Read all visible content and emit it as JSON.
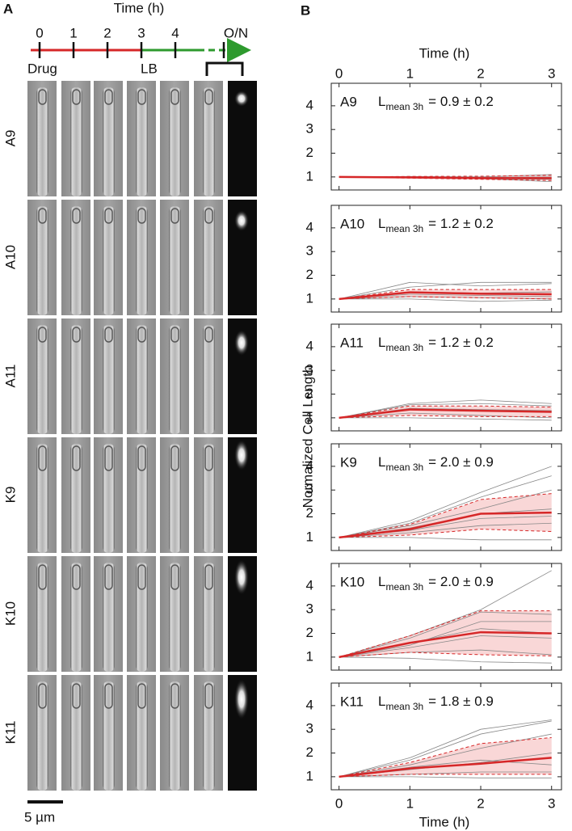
{
  "panel_a": {
    "label": "A",
    "timeline": {
      "title": "Time (h)",
      "ticks": [
        "0",
        "1",
        "2",
        "3",
        "4",
        "O/N"
      ],
      "drug": "Drug",
      "lb": "LB"
    },
    "strains": [
      "A9",
      "A10",
      "A11",
      "K9",
      "K10",
      "K11"
    ],
    "scale_bar": "5 µm"
  },
  "panel_b": {
    "label": "B",
    "xlabel_top": "Time (h)",
    "xlabel_bottom": "Time (h)",
    "ylabel": "Normalized Cell Length"
  },
  "chart_data": [
    {
      "type": "line",
      "label": "A9",
      "annotation": {
        "symbol": "L",
        "subscript": "mean 3h",
        "text": "= 0.9 ± 0.2"
      },
      "x": [
        0,
        1,
        2,
        3
      ],
      "xlim": [
        -0.11,
        3.14
      ],
      "xticks": [
        0,
        1,
        2,
        3
      ],
      "ylim": [
        0.45,
        4.95
      ],
      "yticks": [
        1,
        2,
        3,
        4
      ],
      "mean": {
        "color": "#d62728",
        "values": [
          1,
          0.98,
          0.95,
          0.95
        ]
      },
      "band": {
        "color": "#f6c6c6",
        "upper": [
          1,
          1.02,
          1.03,
          1.07
        ],
        "lower": [
          1,
          0.95,
          0.9,
          0.85
        ]
      },
      "traces": {
        "color": "#888888",
        "values": [
          [
            1,
            1.02,
            1.0,
            1.1
          ],
          [
            1,
            0.97,
            0.93,
            0.8
          ],
          [
            1,
            0.99,
            0.98,
            1.0
          ],
          [
            1,
            0.96,
            0.92,
            0.9
          ]
        ]
      }
    },
    {
      "type": "line",
      "label": "A10",
      "annotation": {
        "symbol": "L",
        "subscript": "mean 3h",
        "text": "= 1.2 ± 0.2"
      },
      "x": [
        0,
        1,
        2,
        3
      ],
      "xlim": [
        -0.11,
        3.14
      ],
      "xticks": [
        0,
        1,
        2,
        3
      ],
      "ylim": [
        0.45,
        4.95
      ],
      "yticks": [
        1,
        2,
        3,
        4
      ],
      "mean": {
        "color": "#d62728",
        "values": [
          1,
          1.28,
          1.22,
          1.2
        ]
      },
      "band": {
        "color": "#f6c6c6",
        "upper": [
          1,
          1.4,
          1.4,
          1.4
        ],
        "lower": [
          1,
          1.1,
          1.05,
          1.0
        ]
      },
      "traces": {
        "color": "#888888",
        "values": [
          [
            1,
            1.7,
            1.55,
            1.65
          ],
          [
            1,
            1.5,
            1.7,
            1.7
          ],
          [
            1,
            1.3,
            1.25,
            1.3
          ],
          [
            1,
            1.1,
            1.05,
            1.0
          ],
          [
            1,
            1.2,
            1.15,
            1.1
          ],
          [
            1,
            1.0,
            0.9,
            0.95
          ]
        ]
      }
    },
    {
      "type": "line",
      "label": "A11",
      "annotation": {
        "symbol": "L",
        "subscript": "mean 3h",
        "text": "= 1.2 ± 0.2"
      },
      "x": [
        0,
        1,
        2,
        3
      ],
      "xlim": [
        -0.11,
        3.14
      ],
      "xticks": [
        0,
        1,
        2,
        3
      ],
      "ylim": [
        0.45,
        4.95
      ],
      "yticks": [
        1,
        2,
        3,
        4
      ],
      "mean": {
        "color": "#d62728",
        "values": [
          1,
          1.35,
          1.3,
          1.25
        ]
      },
      "band": {
        "color": "#f6c6c6",
        "upper": [
          1,
          1.5,
          1.5,
          1.45
        ],
        "lower": [
          1,
          1.1,
          1.05,
          1.05
        ]
      },
      "traces": {
        "color": "#888888",
        "values": [
          [
            1,
            1.6,
            1.75,
            1.6
          ],
          [
            1,
            1.55,
            1.6,
            1.5
          ],
          [
            1,
            1.2,
            1.1,
            1.0
          ],
          [
            1,
            1.0,
            0.95,
            0.9
          ],
          [
            1,
            1.4,
            1.35,
            1.3
          ]
        ]
      }
    },
    {
      "type": "line",
      "label": "K9",
      "annotation": {
        "symbol": "L",
        "subscript": "mean 3h",
        "text": "= 2.0 ± 0.9"
      },
      "x": [
        0,
        1,
        2,
        3
      ],
      "xlim": [
        -0.11,
        3.14
      ],
      "xticks": [
        0,
        1,
        2,
        3
      ],
      "ylim": [
        0.45,
        4.95
      ],
      "yticks": [
        1,
        2,
        3,
        4
      ],
      "mean": {
        "color": "#d62728",
        "values": [
          1,
          1.35,
          2.0,
          2.05
        ]
      },
      "band": {
        "color": "#f6c6c6",
        "upper": [
          1,
          1.55,
          2.6,
          2.85
        ],
        "lower": [
          1,
          1.1,
          1.35,
          1.25
        ]
      },
      "traces": {
        "color": "#888888",
        "values": [
          [
            1,
            1.7,
            2.9,
            4.0
          ],
          [
            1,
            1.6,
            2.7,
            3.6
          ],
          [
            1,
            1.5,
            2.2,
            3.0
          ],
          [
            1,
            1.4,
            2.0,
            2.2
          ],
          [
            1,
            1.2,
            1.5,
            1.6
          ],
          [
            1,
            1.0,
            0.9,
            0.9
          ],
          [
            1,
            1.3,
            1.8,
            1.9
          ]
        ]
      }
    },
    {
      "type": "line",
      "label": "K10",
      "annotation": {
        "symbol": "L",
        "subscript": "mean 3h",
        "text": "= 2.0 ± 0.9"
      },
      "x": [
        0,
        1,
        2,
        3
      ],
      "xlim": [
        -0.11,
        3.14
      ],
      "xticks": [
        0,
        1,
        2,
        3
      ],
      "ylim": [
        0.45,
        4.95
      ],
      "yticks": [
        1,
        2,
        3,
        4
      ],
      "mean": {
        "color": "#d62728",
        "values": [
          1,
          1.6,
          2.05,
          2.0
        ]
      },
      "band": {
        "color": "#f6c6c6",
        "upper": [
          1,
          1.9,
          2.95,
          2.95
        ],
        "lower": [
          1,
          1.2,
          1.1,
          1.05
        ]
      },
      "traces": {
        "color": "#888888",
        "values": [
          [
            1,
            1.9,
            3.0,
            4.65
          ],
          [
            1,
            1.8,
            2.9,
            2.8
          ],
          [
            1,
            1.5,
            2.5,
            2.5
          ],
          [
            1,
            1.4,
            1.9,
            1.8
          ],
          [
            1,
            1.2,
            1.3,
            1.1
          ],
          [
            1,
            0.95,
            0.8,
            0.75
          ],
          [
            1,
            1.6,
            2.2,
            2.0
          ]
        ]
      }
    },
    {
      "type": "line",
      "label": "K11",
      "annotation": {
        "symbol": "L",
        "subscript": "mean 3h",
        "text": "= 1.8 ± 0.9"
      },
      "x": [
        0,
        1,
        2,
        3
      ],
      "xlim": [
        -0.11,
        3.14
      ],
      "xticks": [
        0,
        1,
        2,
        3
      ],
      "ylim": [
        0.45,
        4.95
      ],
      "yticks": [
        1,
        2,
        3,
        4
      ],
      "mean": {
        "color": "#d62728",
        "values": [
          1,
          1.35,
          1.55,
          1.8
        ]
      },
      "band": {
        "color": "#f6c6c6",
        "upper": [
          1,
          1.6,
          2.4,
          2.65
        ],
        "lower": [
          1,
          1.1,
          1.1,
          1.1
        ]
      },
      "traces": {
        "color": "#888888",
        "values": [
          [
            1,
            1.8,
            3.0,
            3.4
          ],
          [
            1,
            1.7,
            2.8,
            3.35
          ],
          [
            1,
            1.5,
            2.2,
            2.8
          ],
          [
            1,
            1.3,
            1.6,
            2.0
          ],
          [
            1,
            1.1,
            1.2,
            1.2
          ],
          [
            1,
            1.0,
            0.95,
            0.95
          ],
          [
            1,
            1.4,
            1.7,
            1.5
          ]
        ]
      }
    }
  ]
}
